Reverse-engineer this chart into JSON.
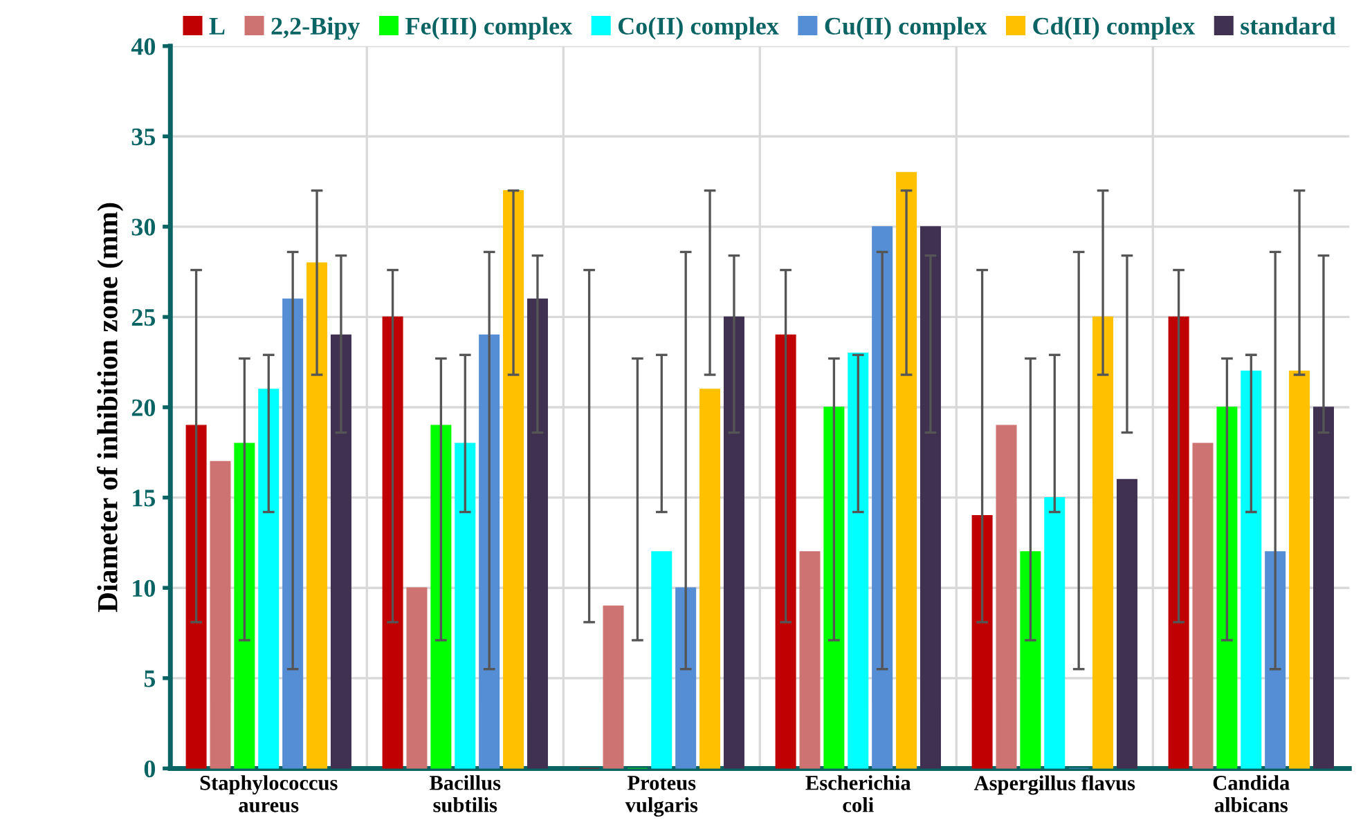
{
  "chart_data": {
    "type": "bar",
    "ylabel": "Diameter of inhibition zone (mm)",
    "categories": [
      "Staphylococcus\naureus",
      "Bacillus\nsubtilis",
      "Proteus\nvulgaris",
      "Escherichia\ncoli",
      "Aspergillus flavus",
      "Candida\nalbicans"
    ],
    "series": [
      {
        "name": "L",
        "color": "#c00000",
        "values": [
          19,
          25,
          0,
          24,
          14,
          25
        ],
        "errors": [
          [
            8.1,
            27.6
          ],
          [
            8.1,
            27.6
          ],
          [
            8.1,
            27.6
          ],
          [
            8.1,
            27.6
          ],
          [
            8.1,
            27.6
          ],
          [
            8.1,
            27.6
          ]
        ]
      },
      {
        "name": "2,2-Bipy",
        "color": "#cd7371",
        "values": [
          17,
          10,
          9,
          12,
          19,
          18
        ]
      },
      {
        "name": "Fe(III) complex",
        "color": "#00ff00",
        "values": [
          18,
          19,
          0,
          20,
          12,
          20
        ],
        "errors": [
          [
            7.1,
            22.7
          ],
          [
            7.1,
            22.7
          ],
          [
            7.1,
            22.7
          ],
          [
            7.1,
            22.7
          ],
          [
            7.1,
            22.7
          ],
          [
            7.1,
            22.7
          ]
        ]
      },
      {
        "name": "Co(II) complex",
        "color": "#00ffff",
        "values": [
          21,
          18,
          12,
          23,
          15,
          22
        ],
        "errors": [
          [
            14.2,
            22.9
          ],
          [
            14.2,
            22.9
          ],
          [
            14.2,
            22.9
          ],
          [
            14.2,
            22.9
          ],
          [
            14.2,
            22.9
          ],
          [
            14.2,
            22.9
          ]
        ]
      },
      {
        "name": "Cu(II) complex",
        "color": "#558ed5",
        "values": [
          26,
          24,
          10,
          30,
          0,
          12
        ],
        "errors": [
          [
            5.5,
            28.6
          ],
          [
            5.5,
            28.6
          ],
          [
            5.5,
            28.6
          ],
          [
            5.5,
            28.6
          ],
          [
            5.5,
            28.6
          ],
          [
            5.5,
            28.6
          ]
        ]
      },
      {
        "name": "Cd(II) complex",
        "color": "#ffc000",
        "values": [
          28,
          32,
          21,
          33,
          25,
          22
        ],
        "errors": [
          [
            21.8,
            32.0
          ],
          [
            21.8,
            32.0
          ],
          [
            21.8,
            32.0
          ],
          [
            21.8,
            32.0
          ],
          [
            21.8,
            32.0
          ],
          [
            21.8,
            32.0
          ]
        ]
      },
      {
        "name": "standard",
        "color": "#403151",
        "values": [
          24,
          26,
          25,
          30,
          16,
          20
        ],
        "errors": [
          [
            18.6,
            28.4
          ],
          [
            18.6,
            28.4
          ],
          [
            18.6,
            28.4
          ],
          [
            18.6,
            28.4
          ],
          [
            18.6,
            28.4
          ],
          [
            18.6,
            28.4
          ]
        ]
      }
    ],
    "ylim": [
      0,
      40
    ],
    "yticks": [
      0,
      5,
      10,
      15,
      20,
      25,
      30,
      35,
      40
    ],
    "grid": true,
    "legend": "top"
  }
}
